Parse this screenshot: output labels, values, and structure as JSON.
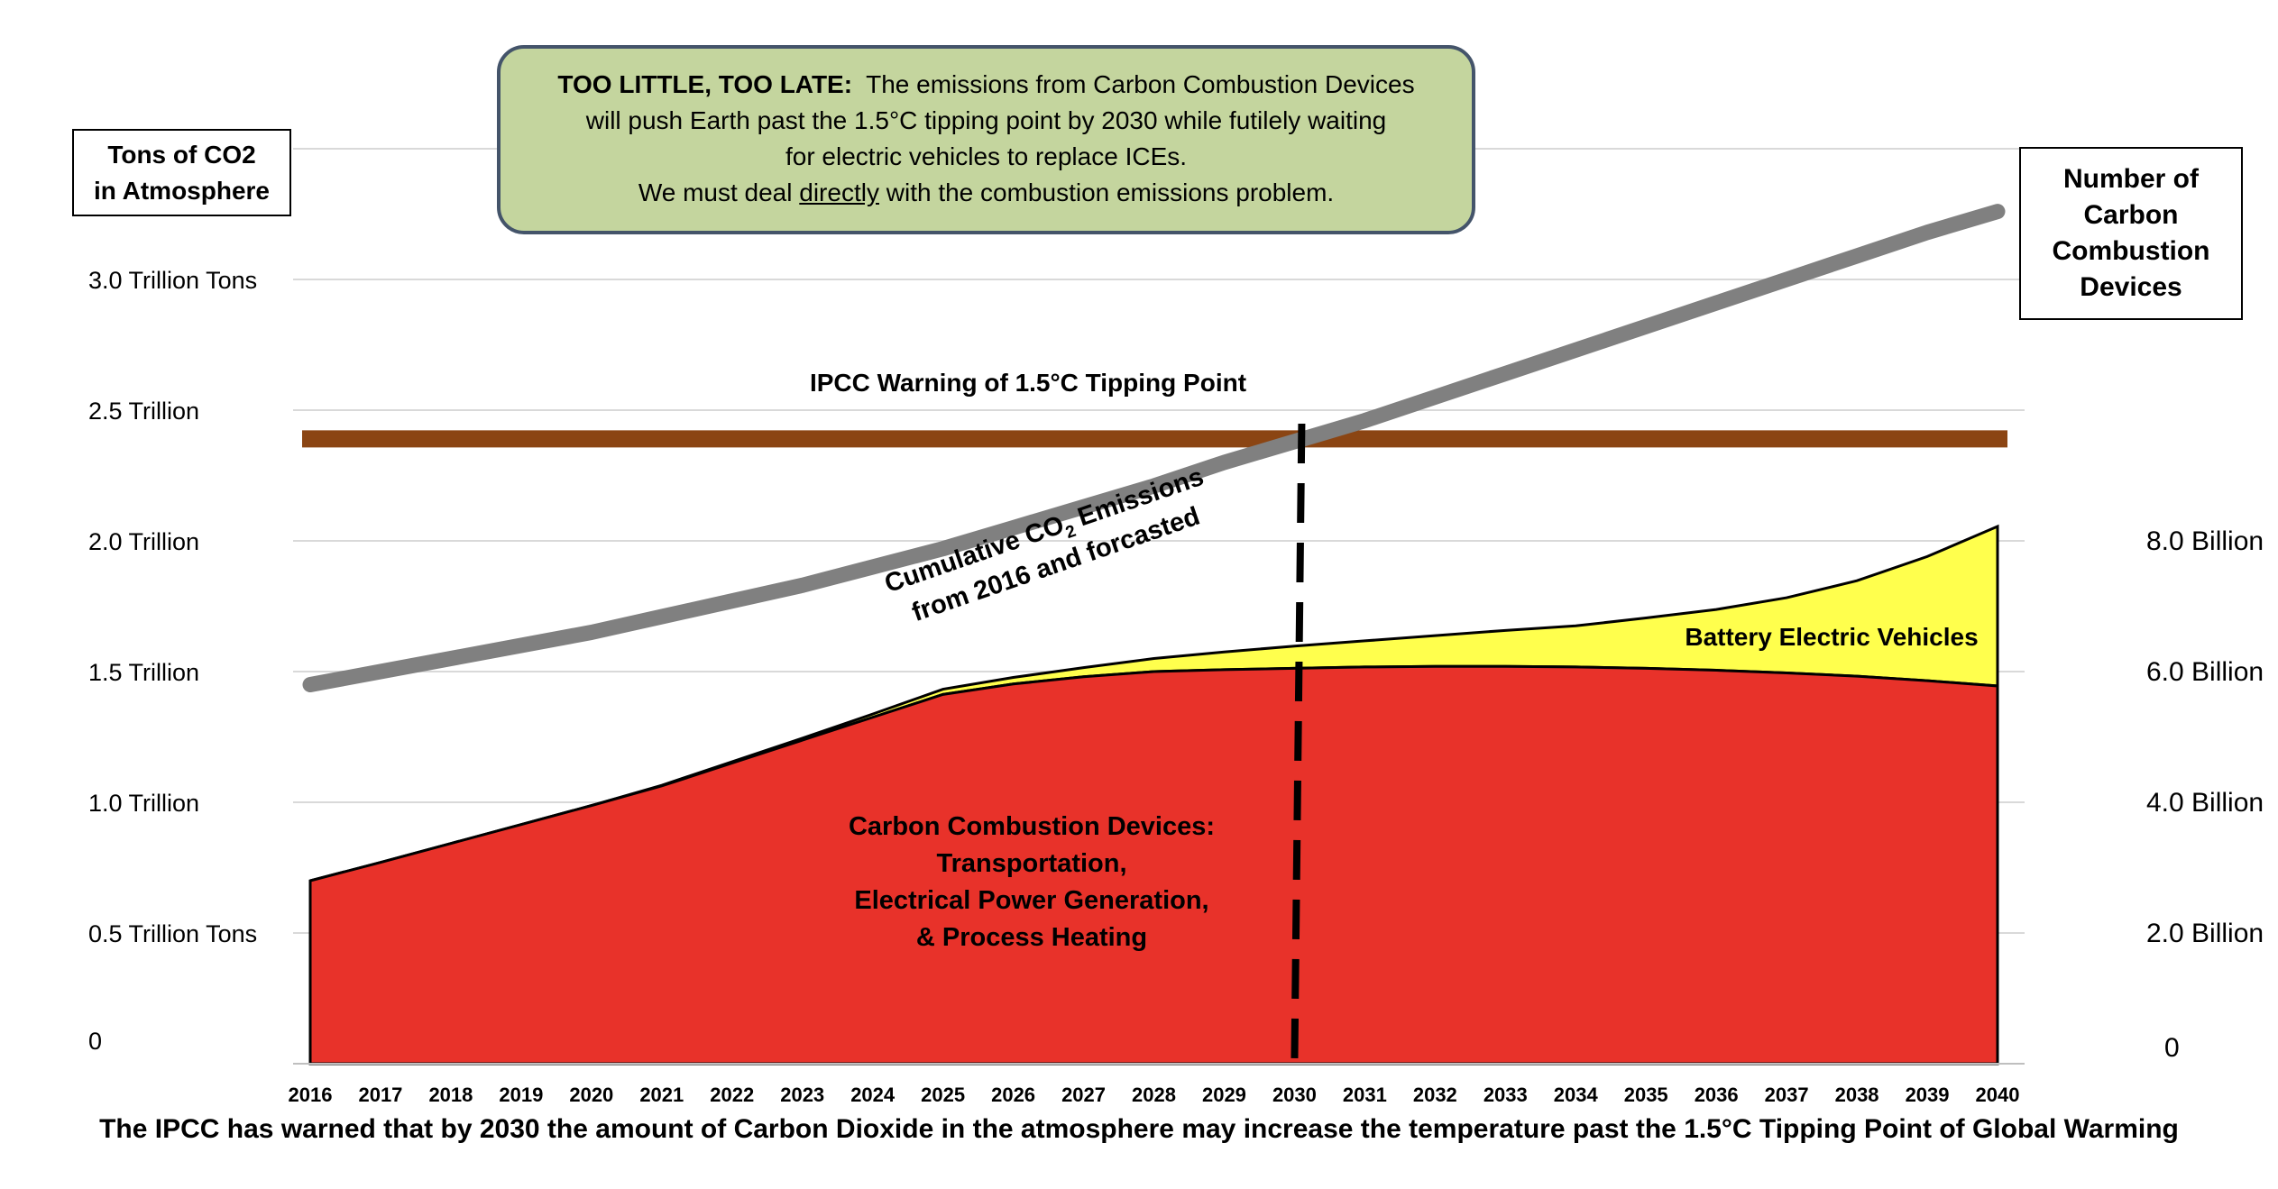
{
  "chart_data": {
    "type": "area",
    "title": "",
    "left_axis_title": [
      "Tons of CO2",
      "in Atmosphere"
    ],
    "right_axis_title": [
      "Number of",
      "Carbon",
      "Combustion",
      "Devices"
    ],
    "x": [
      2016,
      2017,
      2018,
      2019,
      2020,
      2021,
      2022,
      2023,
      2024,
      2025,
      2026,
      2027,
      2028,
      2029,
      2030,
      2031,
      2032,
      2033,
      2034,
      2035,
      2036,
      2037,
      2038,
      2039,
      2040
    ],
    "x_tick_labels": [
      "2016",
      "2017",
      "2018",
      "2019",
      "2020",
      "2021",
      "2022",
      "2023",
      "2024",
      "2025",
      "2026",
      "2027",
      "2028",
      "2029",
      "2030",
      "2031",
      "2032",
      "2033",
      "2034",
      "2035",
      "2036",
      "2037",
      "2038",
      "2039",
      "2040"
    ],
    "left_tick_labels": [
      "0",
      "0.5  Trillion Tons",
      "1.0 Trillion",
      "1.5 Trillion",
      "2.0 Trillion",
      "2.5 Trillion",
      "3.0 Trillion Tons"
    ],
    "left_tick_values": [
      0,
      0.5,
      1.0,
      1.5,
      2.0,
      2.5,
      3.0
    ],
    "left_unit": "Trillion tons",
    "right_tick_labels": [
      "0",
      "2.0 Billion",
      "4.0 Billion",
      "6.0 Billion",
      "8.0 Billion"
    ],
    "right_tick_values": [
      0,
      2,
      4,
      6,
      8
    ],
    "right_unit": "Billion devices",
    "ylim_left": [
      0,
      3.5
    ],
    "ylim_right": [
      0,
      14
    ],
    "grid": true,
    "series": [
      {
        "name": "Carbon Combustion Devices: Transportation, Electrical Power Generation, & Process Heating",
        "axis": "right",
        "kind": "stacked-area",
        "color": "#e8322a",
        "values": [
          2.8,
          3.08,
          3.37,
          3.66,
          3.95,
          4.25,
          4.6,
          4.95,
          5.3,
          5.65,
          5.81,
          5.92,
          6.0,
          6.03,
          6.05,
          6.07,
          6.08,
          6.08,
          6.07,
          6.05,
          6.02,
          5.98,
          5.93,
          5.86,
          5.78
        ]
      },
      {
        "name": "Battery Electric Vehicles",
        "axis": "right",
        "kind": "stacked-area",
        "color": "#ffff4d",
        "values": [
          0,
          0,
          0,
          0,
          0,
          0.01,
          0.02,
          0.03,
          0.05,
          0.08,
          0.1,
          0.14,
          0.2,
          0.27,
          0.34,
          0.4,
          0.47,
          0.55,
          0.63,
          0.77,
          0.93,
          1.15,
          1.46,
          1.9,
          2.44
        ]
      },
      {
        "name": "Cumulative CO2 Emissions from 2016 and forcasted",
        "axis": "left",
        "kind": "line",
        "color": "#808080",
        "values": [
          1.45,
          1.5,
          1.55,
          1.6,
          1.65,
          1.71,
          1.77,
          1.83,
          1.9,
          1.97,
          2.05,
          2.13,
          2.21,
          2.3,
          2.38,
          2.46,
          2.55,
          2.64,
          2.73,
          2.82,
          2.91,
          3.0,
          3.09,
          3.18,
          3.26
        ]
      }
    ],
    "reference_line": {
      "label": "IPCC Warning of 1.5°C Tipping Point",
      "axis": "left",
      "value": 2.39,
      "color": "#8b4513"
    },
    "marker_year": 2030,
    "annotations": {
      "red_area": [
        "Carbon Combustion Devices:",
        "Transportation,",
        "Electrical Power Generation,",
        "& Process Heating"
      ],
      "yellow_area": "Battery Electric Vehicles",
      "gray_line": [
        "Cumulative CO",
        "2",
        " Emissions",
        "from 2016 and forcasted"
      ]
    }
  },
  "callout": {
    "bold_lead": "TOO LITTLE, TOO LATE:",
    "line1_rest": "  The emissions from Carbon Combustion Devices",
    "line2": "will push Earth past the 1.5°C tipping point by 2030 while futilely waiting",
    "line3": "for electric vehicles to replace ICEs.",
    "line4_pre": "We must deal ",
    "line4_underlined": "directly",
    "line4_post": " with the combustion emissions problem."
  },
  "caption": "The IPCC has warned that by 2030 the amount of Carbon Dioxide in the atmosphere may increase the temperature past the 1.5°C Tipping Point of Global Warming",
  "colors": {
    "callout_fill": "#c4d59e",
    "callout_border": "#44546a",
    "grid": "#d9d9d9"
  }
}
